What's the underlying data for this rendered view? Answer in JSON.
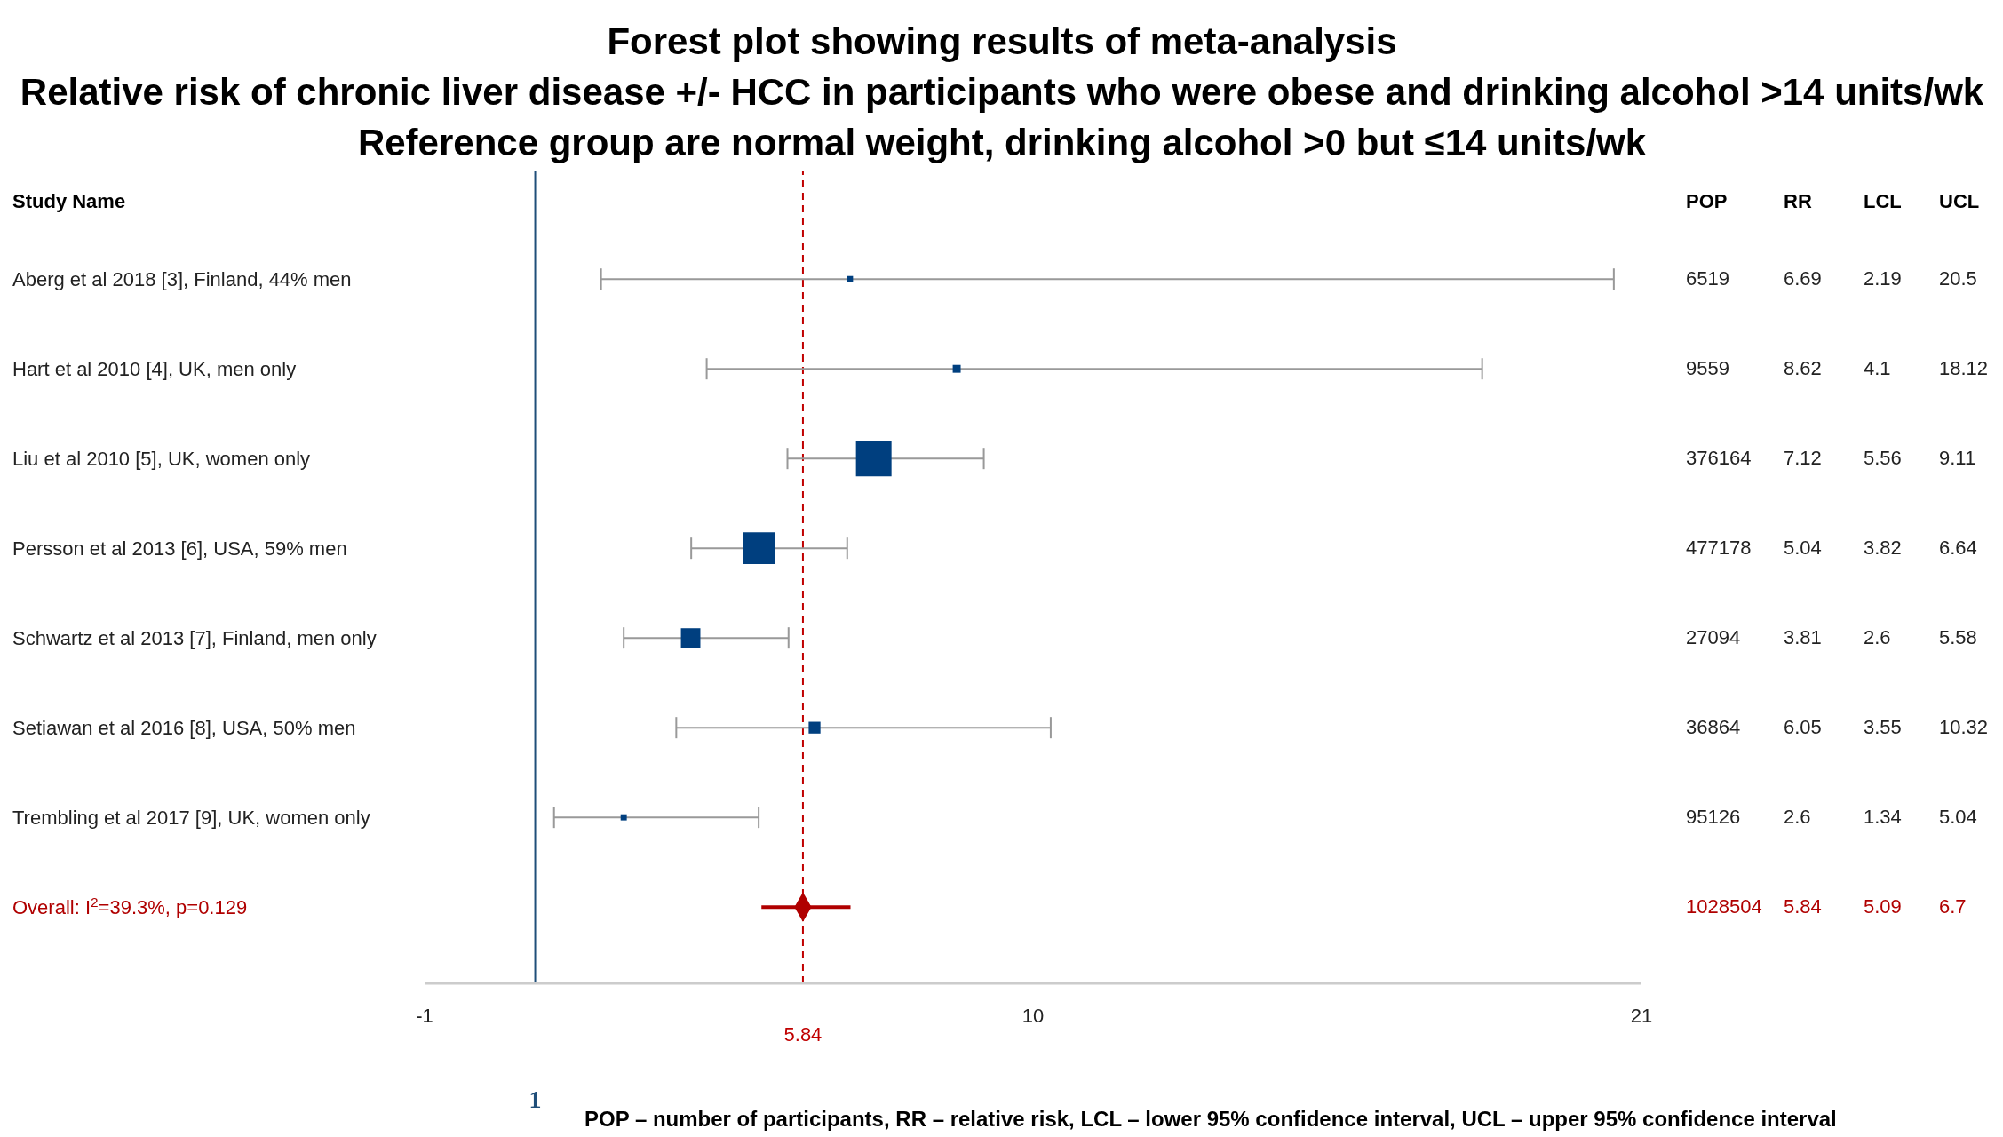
{
  "chart_data": {
    "type": "scatter",
    "title": "Forest plot showing results of meta-analysis",
    "subtitle": "Relative risk of chronic liver disease +/- HCC in participants who were obese and drinking alcohol >14 units/wk\nReference group are normal weight, drinking alcohol >0 but ≤14 units/wk",
    "orientation": "horizontal",
    "categories": [
      "Aberg et al 2018 [3], Finland, 44% men",
      "Hart et al 2010 [4], UK, men only",
      "Liu et al 2010 [5], UK, women only",
      "Persson et al 2013 [6], USA, 59% men",
      "Schwartz et al 2013 [7], Finland, men only",
      "Setiawan et al 2016 [8], USA, 50% men",
      "Trembling et al 2017 [9], UK, women only",
      "Overall: I$^{2}$=39.3%, p=0.129"
    ],
    "series": [
      {
        "type": "bubble",
        "color": "#003f7f",
        "marker": "square",
        "values": [
          6.69,
          8.62,
          7.12,
          5.04,
          3.81,
          6.05,
          2.6,
          null
        ],
        "errors": [
          [
            2.19,
            20.5
          ],
          [
            4.1,
            18.12
          ],
          [
            5.56,
            9.11
          ],
          [
            3.82,
            6.64
          ],
          [
            2.6,
            5.58
          ],
          [
            3.55,
            10.32
          ],
          [
            1.34,
            5.04
          ],
          null
        ],
        "sizes": [
          0.03,
          0.05,
          1,
          0.8,
          0.3,
          0.11,
          0.03,
          null
        ]
      },
      {
        "color": "#b00000",
        "marker": "diamond",
        "values": [
          null,
          null,
          null,
          null,
          null,
          null,
          null,
          5.84
        ],
        "errors": [
          null,
          null,
          null,
          null,
          null,
          null,
          null,
          [
            5.09,
            6.7
          ]
        ]
      }
    ],
    "grid": false,
    "legend": false,
    "xlim": [
      -1,
      21
    ],
    "xticks": [
      -1,
      10,
      21
    ],
    "ref_lines": [
      {
        "axis": "x",
        "value": 1,
        "label": "1",
        "color": "#1f4e79",
        "line_style": "solid"
      },
      {
        "axis": "x",
        "value": 5.84,
        "label": "5.84",
        "color": "#c00000",
        "line_style": "dashed"
      }
    ],
    "annotations": [
      "Study Name",
      "POP",
      "RR",
      "LCL",
      "UCL",
      "6519",
      "6.69",
      "2.19",
      "20.5",
      "9559",
      "8.62",
      "4.1",
      "18.12",
      "376164",
      "7.12",
      "5.56",
      "9.11",
      "477178",
      "5.04",
      "3.82",
      "6.64",
      "27094",
      "3.81",
      "2.6",
      "5.58",
      "36864",
      "6.05",
      "3.55",
      "10.32",
      "95126",
      "2.6",
      "1.34",
      "5.04",
      "1028504",
      "5.84",
      "5.09",
      "6.7",
      "POP – number of participants, RR – relative risk, LCL – lower 95% confidence interval, UCL – upper 95% confidence interval"
    ]
  }
}
